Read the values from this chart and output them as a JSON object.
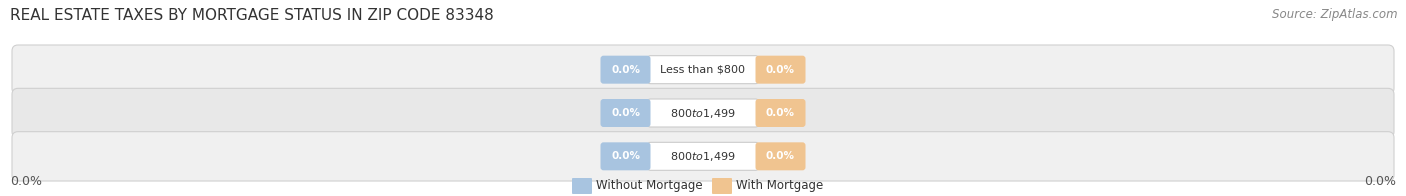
{
  "title": "REAL ESTATE TAXES BY MORTGAGE STATUS IN ZIP CODE 83348",
  "source": "Source: ZipAtlas.com",
  "categories": [
    "Less than $800",
    "$800 to $1,499",
    "$800 to $1,499"
  ],
  "without_mortgage_color": "#a8c4e0",
  "with_mortgage_color": "#f0c490",
  "row_bg_color_odd": "#f0f0f0",
  "row_bg_color_even": "#e8e8e8",
  "row_edge_color": "#d0d0d0",
  "axis_label_left": "0.0%",
  "axis_label_right": "0.0%",
  "legend_without": "Without Mortgage",
  "legend_with": "With Mortgage",
  "background_color": "#ffffff",
  "title_fontsize": 11,
  "source_fontsize": 8.5,
  "cat_fontsize": 8,
  "val_fontsize": 7.5
}
